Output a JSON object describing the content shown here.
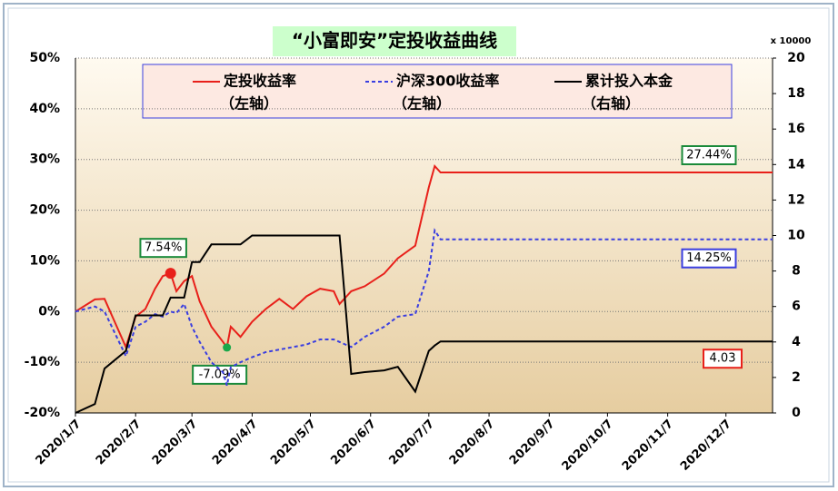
{
  "chart_data": {
    "type": "line",
    "title": "“小富即安”定投收益曲线",
    "y2_unit": "x 10000",
    "x": [
      "2020/1/7",
      "2020/1/17",
      "2020/1/22",
      "2020/2/2",
      "2020/2/7",
      "2020/2/12",
      "2020/2/17",
      "2020/2/21",
      "2020/2/25",
      "2020/2/28",
      "2020/3/3",
      "2020/3/7",
      "2020/3/11",
      "2020/3/17",
      "2020/3/23",
      "2020/3/25",
      "2020/3/27",
      "2020/4/1",
      "2020/4/7",
      "2020/4/14",
      "2020/4/21",
      "2020/4/28",
      "2020/5/5",
      "2020/5/12",
      "2020/5/19",
      "2020/5/22",
      "2020/5/28",
      "2020/6/4",
      "2020/6/14",
      "2020/6/21",
      "2020/6/30",
      "2020/7/7",
      "2020/7/10",
      "2020/7/13",
      "2020/7/15",
      "2020/12/31"
    ],
    "xlim": [
      "2020/1/7",
      "2020/12/31"
    ],
    "xticks": [
      "2020/1/7",
      "2020/2/7",
      "2020/3/7",
      "2020/4/7",
      "2020/5/7",
      "2020/6/7",
      "2020/7/7",
      "2020/8/7",
      "2020/9/7",
      "2020/10/7",
      "2020/11/7",
      "2020/12/7"
    ],
    "ylim": [
      -20,
      50
    ],
    "yticks": [
      {
        "value": -20,
        "label": "-20%"
      },
      {
        "value": -10,
        "label": "-10%"
      },
      {
        "value": 0,
        "label": "0%"
      },
      {
        "value": 10,
        "label": "10%"
      },
      {
        "value": 20,
        "label": "20%"
      },
      {
        "value": 30,
        "label": "30%"
      },
      {
        "value": 40,
        "label": "40%"
      },
      {
        "value": 50,
        "label": "50%"
      }
    ],
    "y2lim": [
      0,
      20
    ],
    "y2ticks": [
      0,
      2,
      4,
      6,
      8,
      10,
      12,
      14,
      16,
      18,
      20
    ],
    "grid": true,
    "series": [
      {
        "name": "定投收益率",
        "legend_note": "（左轴）",
        "color": "#e8201a",
        "dash": false,
        "values": [
          0,
          2.4,
          2.5,
          -7,
          -1,
          0.5,
          4.5,
          7,
          7.54,
          4,
          6,
          7,
          2,
          -3,
          -6,
          -7.09,
          -3,
          -5,
          -2,
          0.5,
          2.5,
          0.5,
          3,
          4.5,
          4,
          1.5,
          4,
          5,
          7.5,
          10.5,
          13,
          24.5,
          28.7,
          27.44,
          27.44,
          27.44
        ],
        "value_labels": [
          null,
          null,
          null,
          null,
          null,
          null,
          null,
          null,
          "7.54%",
          null,
          null,
          null,
          null,
          null,
          null,
          "-7.09%",
          null,
          null,
          null,
          null,
          null,
          null,
          null,
          null,
          null,
          null,
          null,
          null,
          null,
          null,
          null,
          null,
          null,
          null,
          null,
          "27.44%"
        ]
      },
      {
        "name": "沪深300收益率",
        "legend_note": "（左轴）",
        "color": "#3a3ee0",
        "dash": true,
        "values": [
          0,
          1,
          0,
          -8.8,
          -3,
          -2,
          -0.5,
          -1,
          0,
          -0.3,
          1.5,
          -3,
          -6,
          -10,
          -12,
          -14.6,
          -11,
          -10,
          -9,
          -8,
          -7.5,
          -7,
          -6.5,
          -5.5,
          -5.5,
          -6,
          -7,
          -5,
          -3,
          -1,
          -0.5,
          8,
          16,
          14.25,
          14.25,
          14.25
        ],
        "value_labels": [
          null,
          null,
          null,
          null,
          null,
          null,
          null,
          null,
          null,
          null,
          null,
          null,
          null,
          null,
          null,
          null,
          null,
          null,
          null,
          null,
          null,
          null,
          null,
          null,
          null,
          null,
          null,
          null,
          null,
          null,
          null,
          null,
          null,
          null,
          null,
          "14.25%"
        ]
      },
      {
        "name": "累计投入本金",
        "legend_note": "（右轴）",
        "color": "#000000",
        "dash": false,
        "axis": "y2",
        "values": [
          0,
          0.5,
          2.5,
          3.5,
          5.5,
          5.5,
          5.5,
          5.5,
          6.5,
          6.5,
          6.5,
          8.5,
          8.5,
          9.5,
          9.5,
          9.5,
          9.5,
          9.5,
          10,
          10,
          10,
          10,
          10,
          10,
          10,
          10,
          2.2,
          2.3,
          2.4,
          2.6,
          1.2,
          3.5,
          3.8,
          4.03,
          4.03,
          4.03
        ],
        "value_labels": [
          null,
          null,
          null,
          null,
          null,
          null,
          null,
          null,
          null,
          null,
          null,
          null,
          null,
          null,
          null,
          null,
          null,
          null,
          null,
          null,
          null,
          null,
          null,
          null,
          null,
          null,
          null,
          null,
          null,
          null,
          null,
          null,
          null,
          null,
          null,
          "4.03"
        ]
      }
    ]
  }
}
